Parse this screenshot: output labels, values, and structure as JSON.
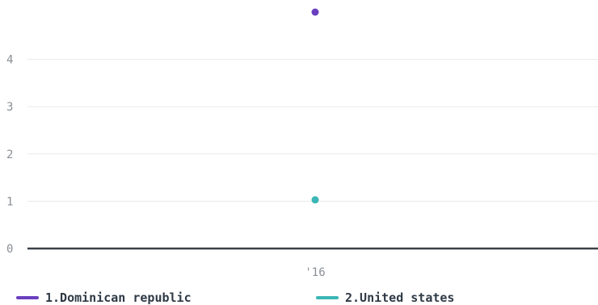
{
  "chart_data": {
    "type": "scatter",
    "x_categories": [
      "'16"
    ],
    "y_ticks": [
      0,
      1,
      2,
      3,
      4
    ],
    "ylim": [
      0,
      5
    ],
    "grid": true,
    "legend_position": "bottom",
    "series": [
      {
        "name": "1.Dominican republic",
        "color": "#6a3fbf",
        "points": [
          {
            "x": "'16",
            "y": 5
          }
        ]
      },
      {
        "name": "2.United states",
        "color": "#3bb6b6",
        "points": [
          {
            "x": "'16",
            "y": 1.03
          }
        ]
      }
    ]
  }
}
